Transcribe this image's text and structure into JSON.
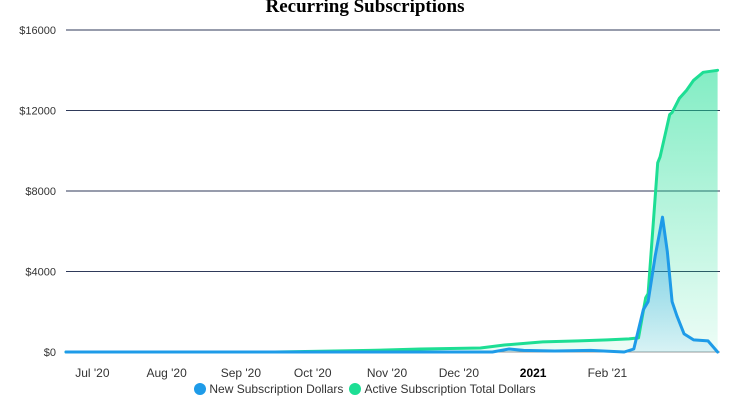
{
  "chart_data": {
    "type": "area",
    "title": "Recurring Subscriptions",
    "y_tick_labels": [
      "$0",
      "$4000",
      "$8000",
      "$12000",
      "$16000"
    ],
    "y_ticks": [
      0,
      4000,
      8000,
      12000,
      16000
    ],
    "ylim": [
      0,
      16000
    ],
    "x_tick_labels": [
      {
        "label": "Jul '20",
        "date": "2020-07-01",
        "bold": false
      },
      {
        "label": "Aug '20",
        "date": "2020-08-01",
        "bold": false
      },
      {
        "label": "Sep '20",
        "date": "2020-09-01",
        "bold": false
      },
      {
        "label": "Oct '20",
        "date": "2020-10-01",
        "bold": false
      },
      {
        "label": "Nov '20",
        "date": "2020-11-01",
        "bold": false
      },
      {
        "label": "Dec '20",
        "date": "2020-12-01",
        "bold": false
      },
      {
        "label": "2021",
        "date": "2021-01-01",
        "bold": true
      },
      {
        "label": "Feb '21",
        "date": "2021-02-01",
        "bold": false
      }
    ],
    "xlim": [
      "2020-06-20",
      "2021-03-20"
    ],
    "grid": true,
    "legend_position": "bottom",
    "series": [
      {
        "name": "New Subscription Dollars",
        "color": "#1e9be8",
        "points": [
          [
            "2020-06-20",
            0
          ],
          [
            "2020-12-15",
            0
          ],
          [
            "2020-12-22",
            150
          ],
          [
            "2020-12-28",
            80
          ],
          [
            "2021-01-10",
            50
          ],
          [
            "2021-01-25",
            80
          ],
          [
            "2021-02-08",
            0
          ],
          [
            "2021-02-12",
            150
          ],
          [
            "2021-02-16",
            2100
          ],
          [
            "2021-02-18",
            2500
          ],
          [
            "2021-02-21",
            4800
          ],
          [
            "2021-02-24",
            6700
          ],
          [
            "2021-02-26",
            5000
          ],
          [
            "2021-02-28",
            2500
          ],
          [
            "2021-03-02",
            1800
          ],
          [
            "2021-03-05",
            900
          ],
          [
            "2021-03-09",
            600
          ],
          [
            "2021-03-15",
            550
          ],
          [
            "2021-03-19",
            0
          ]
        ]
      },
      {
        "name": "Active Subscription Total Dollars",
        "color": "#1dde94",
        "points": [
          [
            "2020-06-20",
            0
          ],
          [
            "2020-09-15",
            0
          ],
          [
            "2020-10-01",
            30
          ],
          [
            "2020-10-25",
            80
          ],
          [
            "2020-11-15",
            150
          ],
          [
            "2020-12-10",
            200
          ],
          [
            "2020-12-20",
            350
          ],
          [
            "2021-01-05",
            500
          ],
          [
            "2021-01-20",
            550
          ],
          [
            "2021-02-01",
            600
          ],
          [
            "2021-02-10",
            650
          ],
          [
            "2021-02-14",
            700
          ],
          [
            "2021-02-17",
            2700
          ],
          [
            "2021-02-18",
            2900
          ],
          [
            "2021-02-22",
            9400
          ],
          [
            "2021-02-23",
            9700
          ],
          [
            "2021-02-27",
            11800
          ],
          [
            "2021-02-28",
            11900
          ],
          [
            "2021-03-03",
            12600
          ],
          [
            "2021-03-06",
            13000
          ],
          [
            "2021-03-09",
            13500
          ],
          [
            "2021-03-13",
            13900
          ],
          [
            "2021-03-19",
            14000
          ]
        ]
      }
    ]
  }
}
